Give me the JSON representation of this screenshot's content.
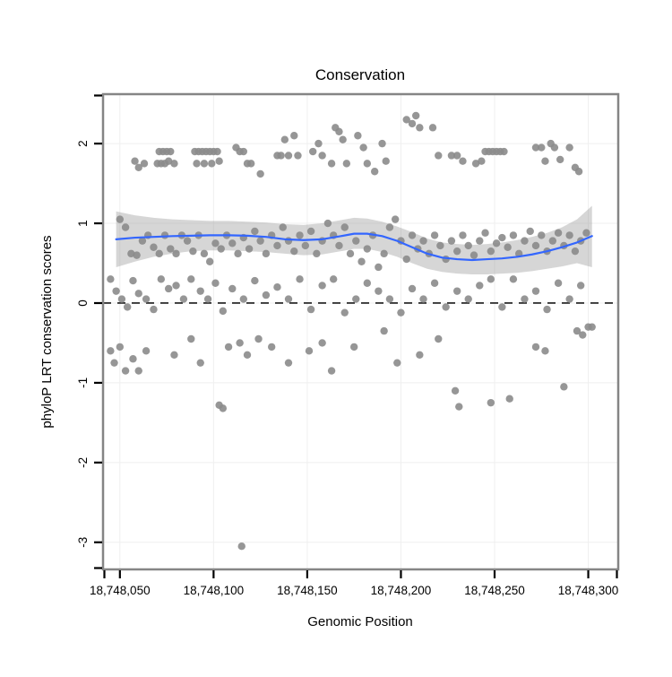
{
  "chart_data": {
    "type": "scatter",
    "title": "Conservation",
    "xlabel": "Genomic Position",
    "ylabel": "phyloP LRT conservation scores",
    "xlim": [
      18748041,
      18748316
    ],
    "ylim": [
      -3.34,
      2.62
    ],
    "grid": true,
    "legend": "none",
    "x_ticks": {
      "values": [
        18748050,
        18748100,
        18748150,
        18748200,
        18748250,
        18748300
      ],
      "labels": [
        "18,748,050",
        "18,748,100",
        "18,748,150",
        "18,748,200",
        "18,748,250",
        "18,748,300"
      ]
    },
    "y_ticks": {
      "values": [
        2,
        1,
        0,
        -1,
        -2,
        -3
      ],
      "labels": [
        "2",
        "1",
        "0",
        "-1",
        "-2",
        "-3"
      ]
    },
    "zero_line": {
      "y": 0,
      "style": "dashed",
      "color": "#1a1a1a"
    },
    "points": {
      "color": "#8b8b8b",
      "opacity": 0.9,
      "radius": 4.2,
      "data": [
        [
          18748058,
          1.78
        ],
        [
          18748060,
          1.7
        ],
        [
          18748063,
          1.75
        ],
        [
          18748070,
          1.75
        ],
        [
          18748072,
          1.75
        ],
        [
          18748074,
          1.75
        ],
        [
          18748076,
          1.78
        ],
        [
          18748079,
          1.75
        ],
        [
          18748071,
          1.9
        ],
        [
          18748073,
          1.9
        ],
        [
          18748075,
          1.9
        ],
        [
          18748077,
          1.9
        ],
        [
          18748090,
          1.9
        ],
        [
          18748092,
          1.9
        ],
        [
          18748094,
          1.9
        ],
        [
          18748096,
          1.9
        ],
        [
          18748098,
          1.9
        ],
        [
          18748100,
          1.9
        ],
        [
          18748102,
          1.9
        ],
        [
          18748091,
          1.75
        ],
        [
          18748095,
          1.75
        ],
        [
          18748099,
          1.75
        ],
        [
          18748103,
          1.78
        ],
        [
          18748112,
          1.95
        ],
        [
          18748114,
          1.9
        ],
        [
          18748116,
          1.9
        ],
        [
          18748118,
          1.75
        ],
        [
          18748120,
          1.75
        ],
        [
          18748125,
          1.62
        ],
        [
          18748134,
          1.85
        ],
        [
          18748136,
          1.85
        ],
        [
          18748138,
          2.05
        ],
        [
          18748140,
          1.85
        ],
        [
          18748143,
          2.1
        ],
        [
          18748145,
          1.85
        ],
        [
          18748153,
          1.9
        ],
        [
          18748156,
          2.0
        ],
        [
          18748158,
          1.85
        ],
        [
          18748163,
          1.75
        ],
        [
          18748165,
          2.2
        ],
        [
          18748167,
          2.15
        ],
        [
          18748169,
          2.05
        ],
        [
          18748171,
          1.75
        ],
        [
          18748177,
          2.1
        ],
        [
          18748180,
          1.95
        ],
        [
          18748182,
          1.75
        ],
        [
          18748186,
          1.65
        ],
        [
          18748190,
          2.0
        ],
        [
          18748192,
          1.78
        ],
        [
          18748203,
          2.3
        ],
        [
          18748206,
          2.25
        ],
        [
          18748208,
          2.35
        ],
        [
          18748210,
          2.2
        ],
        [
          18748217,
          2.2
        ],
        [
          18748220,
          1.85
        ],
        [
          18748227,
          1.85
        ],
        [
          18748230,
          1.85
        ],
        [
          18748233,
          1.78
        ],
        [
          18748240,
          1.75
        ],
        [
          18748243,
          1.78
        ],
        [
          18748245,
          1.9
        ],
        [
          18748247,
          1.9
        ],
        [
          18748249,
          1.9
        ],
        [
          18748251,
          1.9
        ],
        [
          18748253,
          1.9
        ],
        [
          18748255,
          1.9
        ],
        [
          18748272,
          1.95
        ],
        [
          18748275,
          1.95
        ],
        [
          18748277,
          1.78
        ],
        [
          18748280,
          2.0
        ],
        [
          18748282,
          1.95
        ],
        [
          18748285,
          1.8
        ],
        [
          18748290,
          1.95
        ],
        [
          18748293,
          1.7
        ],
        [
          18748295,
          1.65
        ],
        [
          18748050,
          1.05
        ],
        [
          18748053,
          0.95
        ],
        [
          18748056,
          0.62
        ],
        [
          18748059,
          0.6
        ],
        [
          18748062,
          0.78
        ],
        [
          18748065,
          0.85
        ],
        [
          18748068,
          0.7
        ],
        [
          18748071,
          0.62
        ],
        [
          18748074,
          0.85
        ],
        [
          18748077,
          0.68
        ],
        [
          18748080,
          0.62
        ],
        [
          18748083,
          0.85
        ],
        [
          18748086,
          0.78
        ],
        [
          18748089,
          0.65
        ],
        [
          18748092,
          0.85
        ],
        [
          18748095,
          0.62
        ],
        [
          18748098,
          0.52
        ],
        [
          18748101,
          0.75
        ],
        [
          18748104,
          0.68
        ],
        [
          18748107,
          0.85
        ],
        [
          18748110,
          0.75
        ],
        [
          18748113,
          0.62
        ],
        [
          18748116,
          0.82
        ],
        [
          18748119,
          0.68
        ],
        [
          18748122,
          0.9
        ],
        [
          18748125,
          0.78
        ],
        [
          18748128,
          0.62
        ],
        [
          18748131,
          0.85
        ],
        [
          18748134,
          0.72
        ],
        [
          18748137,
          0.95
        ],
        [
          18748140,
          0.78
        ],
        [
          18748143,
          0.65
        ],
        [
          18748146,
          0.85
        ],
        [
          18748149,
          0.72
        ],
        [
          18748152,
          0.9
        ],
        [
          18748155,
          0.62
        ],
        [
          18748158,
          0.78
        ],
        [
          18748161,
          1.0
        ],
        [
          18748164,
          0.85
        ],
        [
          18748167,
          0.72
        ],
        [
          18748170,
          0.95
        ],
        [
          18748173,
          0.62
        ],
        [
          18748176,
          0.78
        ],
        [
          18748179,
          0.52
        ],
        [
          18748182,
          0.68
        ],
        [
          18748185,
          0.85
        ],
        [
          18748188,
          0.45
        ],
        [
          18748191,
          0.62
        ],
        [
          18748194,
          0.95
        ],
        [
          18748197,
          1.05
        ],
        [
          18748200,
          0.78
        ],
        [
          18748203,
          0.55
        ],
        [
          18748206,
          0.85
        ],
        [
          18748209,
          0.68
        ],
        [
          18748212,
          0.78
        ],
        [
          18748215,
          0.62
        ],
        [
          18748218,
          0.85
        ],
        [
          18748221,
          0.72
        ],
        [
          18748224,
          0.55
        ],
        [
          18748227,
          0.78
        ],
        [
          18748230,
          0.65
        ],
        [
          18748233,
          0.85
        ],
        [
          18748236,
          0.72
        ],
        [
          18748239,
          0.6
        ],
        [
          18748242,
          0.78
        ],
        [
          18748245,
          0.88
        ],
        [
          18748248,
          0.65
        ],
        [
          18748251,
          0.75
        ],
        [
          18748254,
          0.82
        ],
        [
          18748257,
          0.7
        ],
        [
          18748260,
          0.85
        ],
        [
          18748263,
          0.62
        ],
        [
          18748266,
          0.78
        ],
        [
          18748269,
          0.9
        ],
        [
          18748272,
          0.72
        ],
        [
          18748275,
          0.85
        ],
        [
          18748278,
          0.65
        ],
        [
          18748281,
          0.78
        ],
        [
          18748284,
          0.88
        ],
        [
          18748287,
          0.72
        ],
        [
          18748290,
          0.85
        ],
        [
          18748293,
          0.65
        ],
        [
          18748296,
          0.78
        ],
        [
          18748299,
          0.88
        ],
        [
          18748045,
          0.3
        ],
        [
          18748048,
          0.15
        ],
        [
          18748051,
          0.05
        ],
        [
          18748054,
          -0.05
        ],
        [
          18748057,
          0.28
        ],
        [
          18748060,
          0.12
        ],
        [
          18748064,
          0.05
        ],
        [
          18748068,
          -0.08
        ],
        [
          18748072,
          0.3
        ],
        [
          18748076,
          0.18
        ],
        [
          18748080,
          0.22
        ],
        [
          18748084,
          0.05
        ],
        [
          18748088,
          0.3
        ],
        [
          18748093,
          0.15
        ],
        [
          18748097,
          0.05
        ],
        [
          18748101,
          0.25
        ],
        [
          18748105,
          -0.1
        ],
        [
          18748110,
          0.18
        ],
        [
          18748116,
          0.05
        ],
        [
          18748122,
          0.28
        ],
        [
          18748128,
          0.1
        ],
        [
          18748134,
          0.2
        ],
        [
          18748140,
          0.05
        ],
        [
          18748146,
          0.3
        ],
        [
          18748152,
          -0.08
        ],
        [
          18748158,
          0.22
        ],
        [
          18748164,
          0.3
        ],
        [
          18748170,
          -0.12
        ],
        [
          18748176,
          0.05
        ],
        [
          18748182,
          0.25
        ],
        [
          18748188,
          0.15
        ],
        [
          18748194,
          0.05
        ],
        [
          18748200,
          -0.12
        ],
        [
          18748206,
          0.18
        ],
        [
          18748212,
          0.05
        ],
        [
          18748218,
          0.25
        ],
        [
          18748224,
          -0.05
        ],
        [
          18748230,
          0.15
        ],
        [
          18748236,
          0.05
        ],
        [
          18748242,
          0.22
        ],
        [
          18748248,
          0.3
        ],
        [
          18748254,
          -0.05
        ],
        [
          18748260,
          0.3
        ],
        [
          18748266,
          0.05
        ],
        [
          18748272,
          0.15
        ],
        [
          18748278,
          -0.08
        ],
        [
          18748284,
          0.25
        ],
        [
          18748290,
          0.05
        ],
        [
          18748296,
          0.22
        ],
        [
          18748302,
          -0.3
        ],
        [
          18748045,
          -0.6
        ],
        [
          18748047,
          -0.75
        ],
        [
          18748050,
          -0.55
        ],
        [
          18748053,
          -0.85
        ],
        [
          18748057,
          -0.7
        ],
        [
          18748060,
          -0.85
        ],
        [
          18748064,
          -0.6
        ],
        [
          18748079,
          -0.65
        ],
        [
          18748088,
          -0.45
        ],
        [
          18748093,
          -0.75
        ],
        [
          18748103,
          -1.28
        ],
        [
          18748105,
          -1.32
        ],
        [
          18748108,
          -0.55
        ],
        [
          18748114,
          -0.5
        ],
        [
          18748118,
          -0.65
        ],
        [
          18748124,
          -0.45
        ],
        [
          18748131,
          -0.55
        ],
        [
          18748140,
          -0.75
        ],
        [
          18748151,
          -0.6
        ],
        [
          18748158,
          -0.5
        ],
        [
          18748163,
          -0.85
        ],
        [
          18748175,
          -0.55
        ],
        [
          18748191,
          -0.35
        ],
        [
          18748198,
          -0.75
        ],
        [
          18748210,
          -0.65
        ],
        [
          18748220,
          -0.45
        ],
        [
          18748229,
          -1.1
        ],
        [
          18748231,
          -1.3
        ],
        [
          18748248,
          -1.25
        ],
        [
          18748258,
          -1.2
        ],
        [
          18748272,
          -0.55
        ],
        [
          18748277,
          -0.6
        ],
        [
          18748287,
          -1.05
        ],
        [
          18748294,
          -0.35
        ],
        [
          18748297,
          -0.4
        ],
        [
          18748300,
          -0.3
        ],
        [
          18748115,
          -3.05
        ]
      ]
    },
    "smooth": {
      "color": "#3366FF",
      "width": 2.2,
      "ribbon_color": "#999999",
      "ribbon_opacity": 0.4,
      "x": [
        18748048,
        18748058,
        18748068,
        18748078,
        18748088,
        18748098,
        18748108,
        18748118,
        18748128,
        18748138,
        18748148,
        18748158,
        18748168,
        18748175,
        18748182,
        18748190,
        18748198,
        18748206,
        18748214,
        18748222,
        18748230,
        18748238,
        18748246,
        18748254,
        18748262,
        18748270,
        18748278,
        18748286,
        18748294,
        18748302
      ],
      "y": [
        0.8,
        0.82,
        0.83,
        0.84,
        0.845,
        0.85,
        0.85,
        0.845,
        0.83,
        0.8,
        0.79,
        0.8,
        0.84,
        0.87,
        0.87,
        0.84,
        0.78,
        0.7,
        0.62,
        0.57,
        0.55,
        0.54,
        0.55,
        0.56,
        0.58,
        0.61,
        0.65,
        0.7,
        0.76,
        0.84
      ],
      "lower": [
        0.45,
        0.52,
        0.58,
        0.62,
        0.65,
        0.66,
        0.66,
        0.65,
        0.64,
        0.62,
        0.6,
        0.61,
        0.65,
        0.68,
        0.68,
        0.64,
        0.58,
        0.5,
        0.43,
        0.39,
        0.37,
        0.36,
        0.36,
        0.37,
        0.38,
        0.4,
        0.43,
        0.46,
        0.5,
        0.45
      ],
      "upper": [
        1.15,
        1.1,
        1.07,
        1.05,
        1.04,
        1.03,
        1.03,
        1.02,
        1.01,
        0.99,
        0.98,
        1.0,
        1.04,
        1.07,
        1.06,
        1.02,
        0.96,
        0.89,
        0.81,
        0.76,
        0.74,
        0.73,
        0.74,
        0.76,
        0.79,
        0.83,
        0.88,
        0.95,
        1.05,
        1.22
      ]
    }
  },
  "style": {
    "figure_bg": "#ffffff",
    "panel_bg": "#ffffff",
    "grid_color": "#efefef",
    "border_color": "#858585",
    "tick_color": "#000000",
    "text_color": "#000000"
  }
}
